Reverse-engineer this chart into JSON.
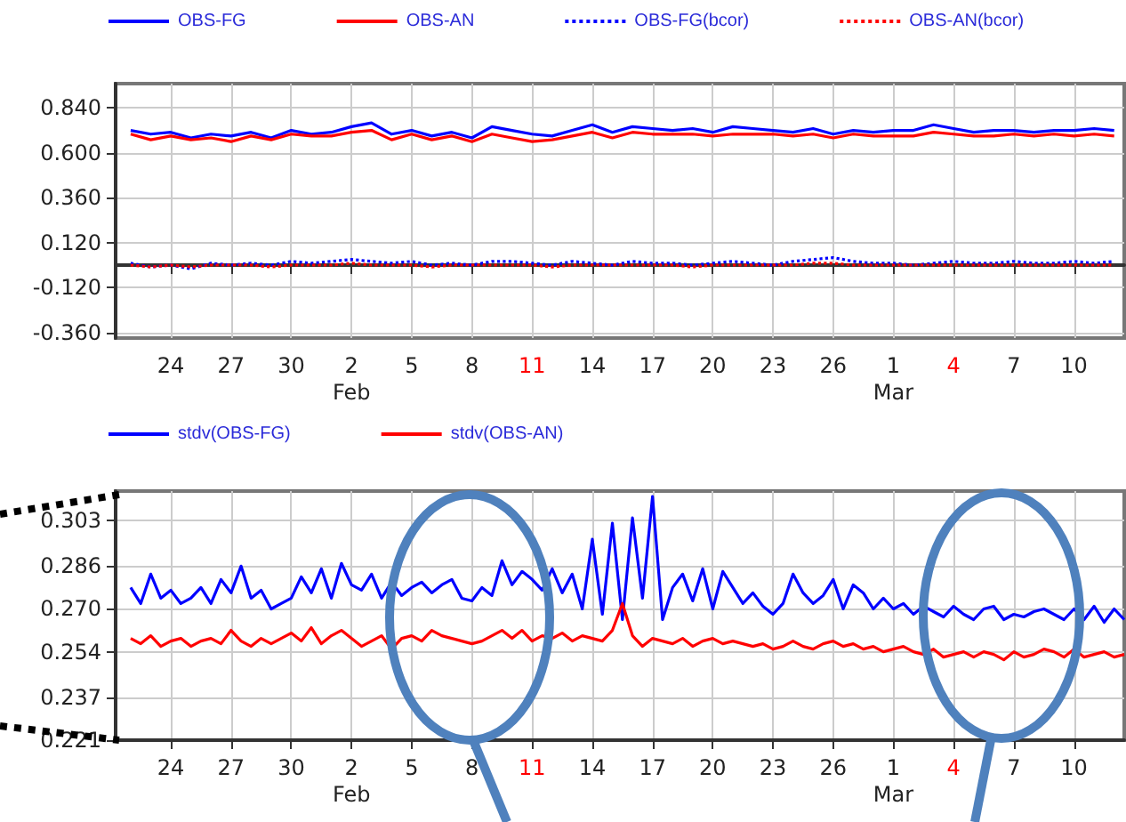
{
  "chart_data": [
    {
      "type": "line",
      "legend": "top",
      "grid": true,
      "marker": "none",
      "xlim": [
        "--01-21T06:00",
        "--03-12T12:00"
      ],
      "xticks": [
        {
          "value": "--01-24",
          "label": "24"
        },
        {
          "value": "--01-27",
          "label": "27"
        },
        {
          "value": "--01-30",
          "label": "30"
        },
        {
          "value": "--02-02",
          "label": "2\nFeb"
        },
        {
          "value": "--02-05",
          "label": "5"
        },
        {
          "value": "--02-08",
          "label": "8"
        },
        {
          "value": "--02-11",
          "label": "11"
        },
        {
          "value": "--02-14",
          "label": "14"
        },
        {
          "value": "--02-17",
          "label": "17"
        },
        {
          "value": "--02-20",
          "label": "20"
        },
        {
          "value": "--02-23",
          "label": "23"
        },
        {
          "value": "--02-26",
          "label": "26"
        },
        {
          "value": "--03-01",
          "label": "1\nMar"
        },
        {
          "value": "--03-04",
          "label": "4"
        },
        {
          "value": "--03-07",
          "label": "7"
        },
        {
          "value": "--03-10",
          "label": "10"
        }
      ],
      "ylim": [
        -0.39,
        0.97
      ],
      "yticks": [
        {
          "value": -0.36,
          "label": "-0.360"
        },
        {
          "value": -0.12,
          "label": "-0.120"
        },
        {
          "value": 0.12,
          "label": "0.120"
        },
        {
          "value": 0.36,
          "label": "0.360"
        },
        {
          "value": 0.6,
          "label": "0.600"
        },
        {
          "value": 0.84,
          "label": "0.840"
        }
      ],
      "x": [
        "--01-22",
        "--01-23",
        "--01-24",
        "--01-25",
        "--01-26",
        "--01-27",
        "--01-28",
        "--01-29",
        "--01-30",
        "--01-31",
        "--02-01",
        "--02-02",
        "--02-03",
        "--02-04",
        "--02-05",
        "--02-06",
        "--02-07",
        "--02-08",
        "--02-09",
        "--02-10",
        "--02-11",
        "--02-12",
        "--02-13",
        "--02-14",
        "--02-15",
        "--02-16",
        "--02-17",
        "--02-18",
        "--02-19",
        "--02-20",
        "--02-21",
        "--02-22",
        "--02-23",
        "--02-24",
        "--02-25",
        "--02-26",
        "--02-27",
        "--02-28",
        "--03-01",
        "--03-02",
        "--03-03",
        "--03-04",
        "--03-05",
        "--03-06",
        "--03-07",
        "--03-08",
        "--03-09",
        "--03-10",
        "--03-11",
        "--03-12"
      ],
      "series": [
        {
          "name": "OBS-FG",
          "color": "#0000ff",
          "line_style": "solid",
          "values": [
            0.72,
            0.7,
            0.71,
            0.68,
            0.7,
            0.69,
            0.71,
            0.68,
            0.72,
            0.7,
            0.71,
            0.74,
            0.76,
            0.7,
            0.72,
            0.69,
            0.71,
            0.68,
            0.74,
            0.72,
            0.7,
            0.69,
            0.72,
            0.75,
            0.71,
            0.74,
            0.73,
            0.72,
            0.73,
            0.71,
            0.74,
            0.73,
            0.72,
            0.71,
            0.73,
            0.7,
            0.72,
            0.71,
            0.72,
            0.72,
            0.75,
            0.73,
            0.71,
            0.72,
            0.72,
            0.71,
            0.72,
            0.72,
            0.73,
            0.72
          ]
        },
        {
          "name": "OBS-AN",
          "color": "#ff0000",
          "line_style": "solid",
          "values": [
            0.7,
            0.67,
            0.69,
            0.67,
            0.68,
            0.66,
            0.69,
            0.67,
            0.7,
            0.69,
            0.69,
            0.71,
            0.72,
            0.67,
            0.7,
            0.67,
            0.69,
            0.66,
            0.7,
            0.68,
            0.66,
            0.67,
            0.69,
            0.71,
            0.68,
            0.71,
            0.7,
            0.7,
            0.7,
            0.69,
            0.7,
            0.7,
            0.7,
            0.69,
            0.7,
            0.68,
            0.7,
            0.69,
            0.69,
            0.69,
            0.71,
            0.7,
            0.69,
            0.69,
            0.7,
            0.69,
            0.7,
            0.69,
            0.7,
            0.69
          ]
        },
        {
          "name": "OBS-FG(bcor)",
          "color": "#0000ff",
          "line_style": "dotted",
          "values": [
            0.01,
            -0.01,
            0.0,
            -0.02,
            0.01,
            0.0,
            0.01,
            0.0,
            0.02,
            0.01,
            0.02,
            0.03,
            0.02,
            0.01,
            0.02,
            0.0,
            0.01,
            0.0,
            0.02,
            0.02,
            0.01,
            0.0,
            0.02,
            0.01,
            0.0,
            0.02,
            0.01,
            0.01,
            0.0,
            0.01,
            0.02,
            0.01,
            0.0,
            0.02,
            0.03,
            0.04,
            0.02,
            0.01,
            0.01,
            0.0,
            0.01,
            0.02,
            0.01,
            0.01,
            0.02,
            0.01,
            0.01,
            0.02,
            0.01,
            0.02
          ]
        },
        {
          "name": "OBS-AN(bcor)",
          "color": "#ff0000",
          "line_style": "dotted",
          "values": [
            0.0,
            -0.01,
            0.0,
            -0.01,
            0.0,
            0.0,
            0.0,
            -0.01,
            0.0,
            0.0,
            0.0,
            0.01,
            0.0,
            0.0,
            0.0,
            -0.01,
            0.0,
            0.0,
            0.0,
            0.0,
            0.0,
            -0.01,
            0.0,
            0.0,
            0.0,
            0.0,
            0.0,
            0.0,
            -0.01,
            0.0,
            0.0,
            0.0,
            0.0,
            0.0,
            0.01,
            0.01,
            0.0,
            0.0,
            0.0,
            0.0,
            0.0,
            0.0,
            0.0,
            0.0,
            0.0,
            0.0,
            0.0,
            0.0,
            0.0,
            0.0
          ]
        }
      ]
    },
    {
      "type": "line",
      "legend": "top",
      "grid": true,
      "marker": "none",
      "xlim": [
        "--01-21T06:00",
        "--03-12T12:00"
      ],
      "xticks": [
        {
          "value": "--01-24",
          "label": "24"
        },
        {
          "value": "--01-27",
          "label": "27"
        },
        {
          "value": "--01-30",
          "label": "30"
        },
        {
          "value": "--02-02",
          "label": "2\nFeb"
        },
        {
          "value": "--02-05",
          "label": "5"
        },
        {
          "value": "--02-08",
          "label": "8"
        },
        {
          "value": "--02-11",
          "label": "11"
        },
        {
          "value": "--02-14",
          "label": "14"
        },
        {
          "value": "--02-17",
          "label": "17"
        },
        {
          "value": "--02-20",
          "label": "20"
        },
        {
          "value": "--02-23",
          "label": "23"
        },
        {
          "value": "--02-26",
          "label": "26"
        },
        {
          "value": "--03-01",
          "label": "1\nMar"
        },
        {
          "value": "--03-04",
          "label": "4"
        },
        {
          "value": "--03-07",
          "label": "7"
        },
        {
          "value": "--03-10",
          "label": "10"
        }
      ],
      "ylim": [
        0.221,
        0.314
      ],
      "yticks": [
        0.221,
        0.237,
        0.254,
        {
          "value": 0.27,
          "label": "0.270"
        },
        0.286,
        0.303
      ],
      "x": [
        "--01-22T00:00",
        "--01-22T12:00",
        "--01-23T00:00",
        "--01-23T12:00",
        "--01-24T00:00",
        "--01-24T12:00",
        "--01-25T00:00",
        "--01-25T12:00",
        "--01-26T00:00",
        "--01-26T12:00",
        "--01-27T00:00",
        "--01-27T12:00",
        "--01-28T00:00",
        "--01-28T12:00",
        "--01-29T00:00",
        "--01-29T12:00",
        "--01-30T00:00",
        "--01-30T12:00",
        "--01-31T00:00",
        "--01-31T12:00",
        "--02-01T00:00",
        "--02-01T12:00",
        "--02-02T00:00",
        "--02-02T12:00",
        "--02-03T00:00",
        "--02-03T12:00",
        "--02-04T00:00",
        "--02-04T12:00",
        "--02-05T00:00",
        "--02-05T12:00",
        "--02-06T00:00",
        "--02-06T12:00",
        "--02-07T00:00",
        "--02-07T12:00",
        "--02-08T00:00",
        "--02-08T12:00",
        "--02-09T00:00",
        "--02-09T12:00",
        "--02-10T00:00",
        "--02-10T12:00",
        "--02-11T00:00",
        "--02-11T12:00",
        "--02-12T00:00",
        "--02-12T12:00",
        "--02-13T00:00",
        "--02-13T12:00",
        "--02-14T00:00",
        "--02-14T12:00",
        "--02-15T00:00",
        "--02-15T12:00",
        "--02-16T00:00",
        "--02-16T12:00",
        "--02-17T00:00",
        "--02-17T12:00",
        "--02-18T00:00",
        "--02-18T12:00",
        "--02-19T00:00",
        "--02-19T12:00",
        "--02-20T00:00",
        "--02-20T12:00",
        "--02-21T00:00",
        "--02-21T12:00",
        "--02-22T00:00",
        "--02-22T12:00",
        "--02-23T00:00",
        "--02-23T12:00",
        "--02-24T00:00",
        "--02-24T12:00",
        "--02-25T00:00",
        "--02-25T12:00",
        "--02-26T00:00",
        "--02-26T12:00",
        "--02-27T00:00",
        "--02-27T12:00",
        "--02-28T00:00",
        "--02-28T12:00",
        "--03-01T00:00",
        "--03-01T12:00",
        "--03-02T00:00",
        "--03-02T12:00",
        "--03-03T00:00",
        "--03-03T12:00",
        "--03-04T00:00",
        "--03-04T12:00",
        "--03-05T00:00",
        "--03-05T12:00",
        "--03-06T00:00",
        "--03-06T12:00",
        "--03-07T00:00",
        "--03-07T12:00",
        "--03-08T00:00",
        "--03-08T12:00",
        "--03-09T00:00",
        "--03-09T12:00",
        "--03-10T00:00",
        "--03-10T12:00",
        "--03-11T00:00",
        "--03-11T12:00",
        "--03-12T00:00",
        "--03-12T12:00"
      ],
      "series": [
        {
          "name": "stdv(OBS-FG)",
          "color": "#0000ff",
          "line_style": "solid",
          "values": [
            0.278,
            0.272,
            0.283,
            0.274,
            0.277,
            0.272,
            0.274,
            0.278,
            0.272,
            0.281,
            0.276,
            0.286,
            0.274,
            0.277,
            0.27,
            0.272,
            0.274,
            0.282,
            0.276,
            0.285,
            0.274,
            0.287,
            0.279,
            0.277,
            0.283,
            0.274,
            0.28,
            0.275,
            0.278,
            0.28,
            0.276,
            0.279,
            0.281,
            0.274,
            0.273,
            0.278,
            0.275,
            0.288,
            0.279,
            0.284,
            0.281,
            0.277,
            0.285,
            0.276,
            0.283,
            0.27,
            0.296,
            0.268,
            0.302,
            0.266,
            0.304,
            0.274,
            0.312,
            0.266,
            0.278,
            0.283,
            0.273,
            0.285,
            0.27,
            0.284,
            0.278,
            0.272,
            0.276,
            0.271,
            0.268,
            0.272,
            0.283,
            0.276,
            0.272,
            0.275,
            0.281,
            0.27,
            0.279,
            0.276,
            0.27,
            0.274,
            0.27,
            0.272,
            0.268,
            0.271,
            0.269,
            0.267,
            0.271,
            0.268,
            0.266,
            0.27,
            0.271,
            0.266,
            0.268,
            0.267,
            0.269,
            0.27,
            0.268,
            0.266,
            0.27,
            0.266,
            0.271,
            0.265,
            0.27,
            0.266
          ]
        },
        {
          "name": "stdv(OBS-AN)",
          "color": "#ff0000",
          "line_style": "solid",
          "values": [
            0.259,
            0.257,
            0.26,
            0.256,
            0.258,
            0.259,
            0.256,
            0.258,
            0.259,
            0.257,
            0.262,
            0.258,
            0.256,
            0.259,
            0.257,
            0.259,
            0.261,
            0.258,
            0.263,
            0.257,
            0.26,
            0.262,
            0.259,
            0.256,
            0.258,
            0.26,
            0.255,
            0.259,
            0.26,
            0.258,
            0.262,
            0.26,
            0.259,
            0.258,
            0.257,
            0.258,
            0.26,
            0.262,
            0.259,
            0.262,
            0.258,
            0.26,
            0.259,
            0.261,
            0.258,
            0.26,
            0.259,
            0.258,
            0.262,
            0.272,
            0.26,
            0.256,
            0.259,
            0.258,
            0.257,
            0.259,
            0.256,
            0.258,
            0.259,
            0.257,
            0.258,
            0.257,
            0.256,
            0.257,
            0.255,
            0.256,
            0.258,
            0.256,
            0.255,
            0.257,
            0.258,
            0.256,
            0.257,
            0.255,
            0.256,
            0.254,
            0.255,
            0.256,
            0.254,
            0.253,
            0.255,
            0.252,
            0.253,
            0.254,
            0.252,
            0.254,
            0.253,
            0.251,
            0.254,
            0.252,
            0.253,
            0.255,
            0.254,
            0.252,
            0.255,
            0.252,
            0.253,
            0.254,
            0.252,
            0.253
          ]
        }
      ]
    }
  ]
}
